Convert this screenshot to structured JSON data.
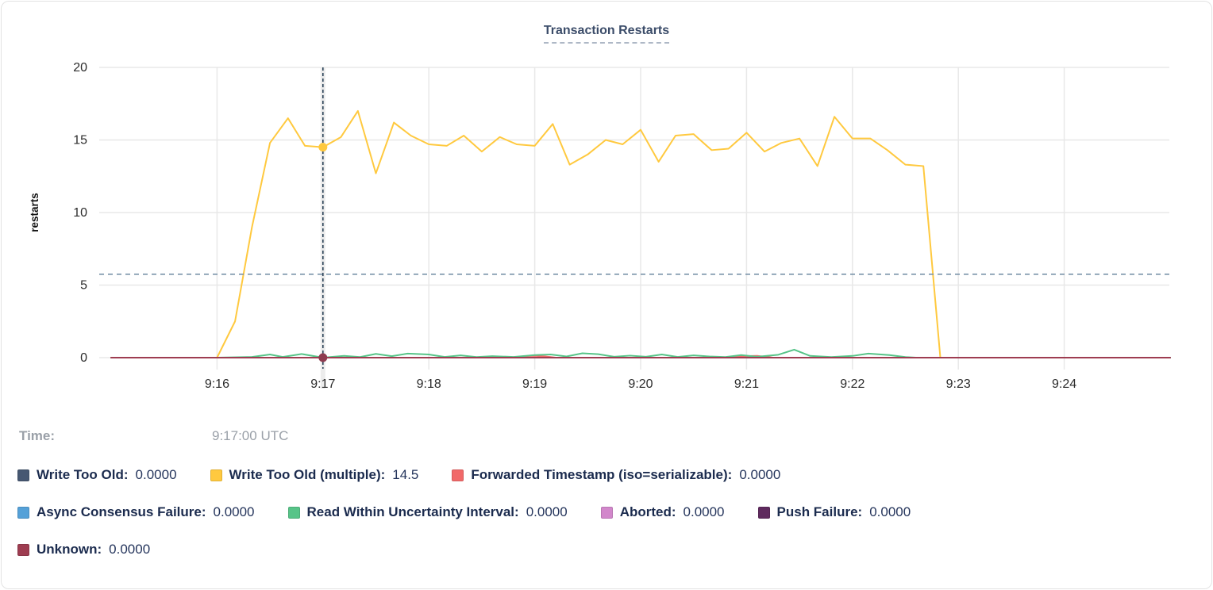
{
  "title": "Transaction Restarts",
  "tooltip": {
    "time_label": "Time:",
    "time_value": "9:17:00 UTC"
  },
  "chart_data": {
    "type": "line",
    "title": "Transaction Restarts",
    "xlabel": "",
    "ylabel": "restarts",
    "ylim": [
      0,
      20
    ],
    "y_ticks": [
      0,
      5,
      10,
      15,
      20
    ],
    "x_ticks": [
      "9:16",
      "9:17",
      "9:18",
      "9:19",
      "9:20",
      "9:21",
      "9:22",
      "9:23",
      "9:24"
    ],
    "x_range": [
      "9:15",
      "9:25"
    ],
    "grid": true,
    "legend_position": "bottom",
    "series": [
      {
        "name": "Write Too Old",
        "color": "#475872",
        "points": [
          [
            0,
            0
          ],
          [
            10,
            0
          ]
        ]
      },
      {
        "name": "Async Consensus Failure",
        "color": "#55A1D8",
        "points": [
          [
            0,
            0
          ],
          [
            10,
            0
          ]
        ]
      },
      {
        "name": "Aborted",
        "color": "#D287CB",
        "points": [
          [
            0,
            0
          ],
          [
            10,
            0
          ]
        ]
      },
      {
        "name": "Push Failure",
        "color": "#5F2A5E",
        "points": [
          [
            0,
            0
          ],
          [
            10,
            0
          ]
        ]
      },
      {
        "name": "Forwarded Timestamp (iso=serializable)",
        "color": "#F16969",
        "points": [
          [
            0,
            0
          ],
          [
            3.8,
            0
          ],
          [
            3.9,
            0.1
          ],
          [
            4.0,
            0.12
          ],
          [
            4.1,
            0.08
          ],
          [
            4.2,
            0
          ],
          [
            5.8,
            0
          ],
          [
            5.95,
            0.1
          ],
          [
            6.1,
            0.12
          ],
          [
            6.25,
            0
          ],
          [
            10,
            0
          ]
        ]
      },
      {
        "name": "Read Within Uncertainty Interval",
        "color": "#57C488",
        "points": [
          [
            0,
            0
          ],
          [
            1.0,
            0
          ],
          [
            1.33,
            0.05
          ],
          [
            1.5,
            0.22
          ],
          [
            1.62,
            0.05
          ],
          [
            1.8,
            0.25
          ],
          [
            2.0,
            0
          ],
          [
            2.2,
            0.12
          ],
          [
            2.35,
            0.04
          ],
          [
            2.5,
            0.26
          ],
          [
            2.65,
            0.1
          ],
          [
            2.8,
            0.28
          ],
          [
            3.0,
            0.22
          ],
          [
            3.15,
            0.05
          ],
          [
            3.3,
            0.16
          ],
          [
            3.45,
            0.04
          ],
          [
            3.6,
            0.1
          ],
          [
            3.8,
            0.05
          ],
          [
            4.0,
            0.18
          ],
          [
            4.15,
            0.22
          ],
          [
            4.3,
            0.08
          ],
          [
            4.45,
            0.3
          ],
          [
            4.6,
            0.24
          ],
          [
            4.75,
            0.06
          ],
          [
            4.9,
            0.14
          ],
          [
            5.05,
            0.06
          ],
          [
            5.2,
            0.22
          ],
          [
            5.35,
            0.05
          ],
          [
            5.5,
            0.16
          ],
          [
            5.65,
            0.08
          ],
          [
            5.8,
            0.04
          ],
          [
            5.95,
            0.18
          ],
          [
            6.1,
            0.06
          ],
          [
            6.3,
            0.2
          ],
          [
            6.45,
            0.55
          ],
          [
            6.6,
            0.12
          ],
          [
            6.8,
            0.04
          ],
          [
            7.0,
            0.12
          ],
          [
            7.15,
            0.28
          ],
          [
            7.35,
            0.18
          ],
          [
            7.5,
            0.04
          ],
          [
            7.6,
            0
          ],
          [
            10,
            0
          ]
        ]
      },
      {
        "name": "Write Too Old (multiple)",
        "color": "#FFC93F",
        "points": [
          [
            0,
            0
          ],
          [
            1.0,
            0
          ],
          [
            1.17,
            2.5
          ],
          [
            1.33,
            9.0
          ],
          [
            1.5,
            14.8
          ],
          [
            1.67,
            16.5
          ],
          [
            1.83,
            14.6
          ],
          [
            2.0,
            14.5
          ],
          [
            2.17,
            15.2
          ],
          [
            2.33,
            17.0
          ],
          [
            2.5,
            12.7
          ],
          [
            2.67,
            16.2
          ],
          [
            2.83,
            15.3
          ],
          [
            3.0,
            14.7
          ],
          [
            3.17,
            14.6
          ],
          [
            3.33,
            15.3
          ],
          [
            3.5,
            14.2
          ],
          [
            3.67,
            15.2
          ],
          [
            3.83,
            14.7
          ],
          [
            4.0,
            14.6
          ],
          [
            4.17,
            16.1
          ],
          [
            4.33,
            13.3
          ],
          [
            4.5,
            14.0
          ],
          [
            4.67,
            15.0
          ],
          [
            4.83,
            14.7
          ],
          [
            5.0,
            15.7
          ],
          [
            5.17,
            13.5
          ],
          [
            5.33,
            15.3
          ],
          [
            5.5,
            15.4
          ],
          [
            5.67,
            14.3
          ],
          [
            5.83,
            14.4
          ],
          [
            6.0,
            15.5
          ],
          [
            6.17,
            14.2
          ],
          [
            6.33,
            14.8
          ],
          [
            6.5,
            15.1
          ],
          [
            6.67,
            13.2
          ],
          [
            6.83,
            16.6
          ],
          [
            7.0,
            15.1
          ],
          [
            7.17,
            15.1
          ],
          [
            7.33,
            14.3
          ],
          [
            7.5,
            13.3
          ],
          [
            7.67,
            13.2
          ],
          [
            7.83,
            0
          ]
        ]
      },
      {
        "name": "Unknown",
        "color": "#9E3D51",
        "points": [
          [
            0,
            0
          ],
          [
            10,
            0
          ]
        ]
      }
    ],
    "crosshair": {
      "time": "9:17:00 UTC",
      "t_minutes": 2.0,
      "horizontal_value": 5.75,
      "dots": [
        {
          "series": "Write Too Old (multiple)",
          "value": 14.5,
          "color": "#FFC93F"
        },
        {
          "series": "Unknown",
          "value": 0,
          "color": "#8E3B4F"
        }
      ]
    }
  },
  "legend": {
    "rows": [
      [
        {
          "label": "Write Too Old:",
          "value": "0.0000",
          "color": "#475872"
        },
        {
          "label": "Write Too Old (multiple):",
          "value": "14.5",
          "color": "#FFC93F"
        },
        {
          "label": "Forwarded Timestamp (iso=serializable):",
          "value": "0.0000",
          "color": "#F16969"
        }
      ],
      [
        {
          "label": "Async Consensus Failure:",
          "value": "0.0000",
          "color": "#55A1D8"
        },
        {
          "label": "Read Within Uncertainty Interval:",
          "value": "0.0000",
          "color": "#57C488"
        },
        {
          "label": "Aborted:",
          "value": "0.0000",
          "color": "#D287CB"
        },
        {
          "label": "Push Failure:",
          "value": "0.0000",
          "color": "#5F2A5E"
        }
      ],
      [
        {
          "label": "Unknown:",
          "value": "0.0000",
          "color": "#9E3D51"
        }
      ]
    ]
  }
}
